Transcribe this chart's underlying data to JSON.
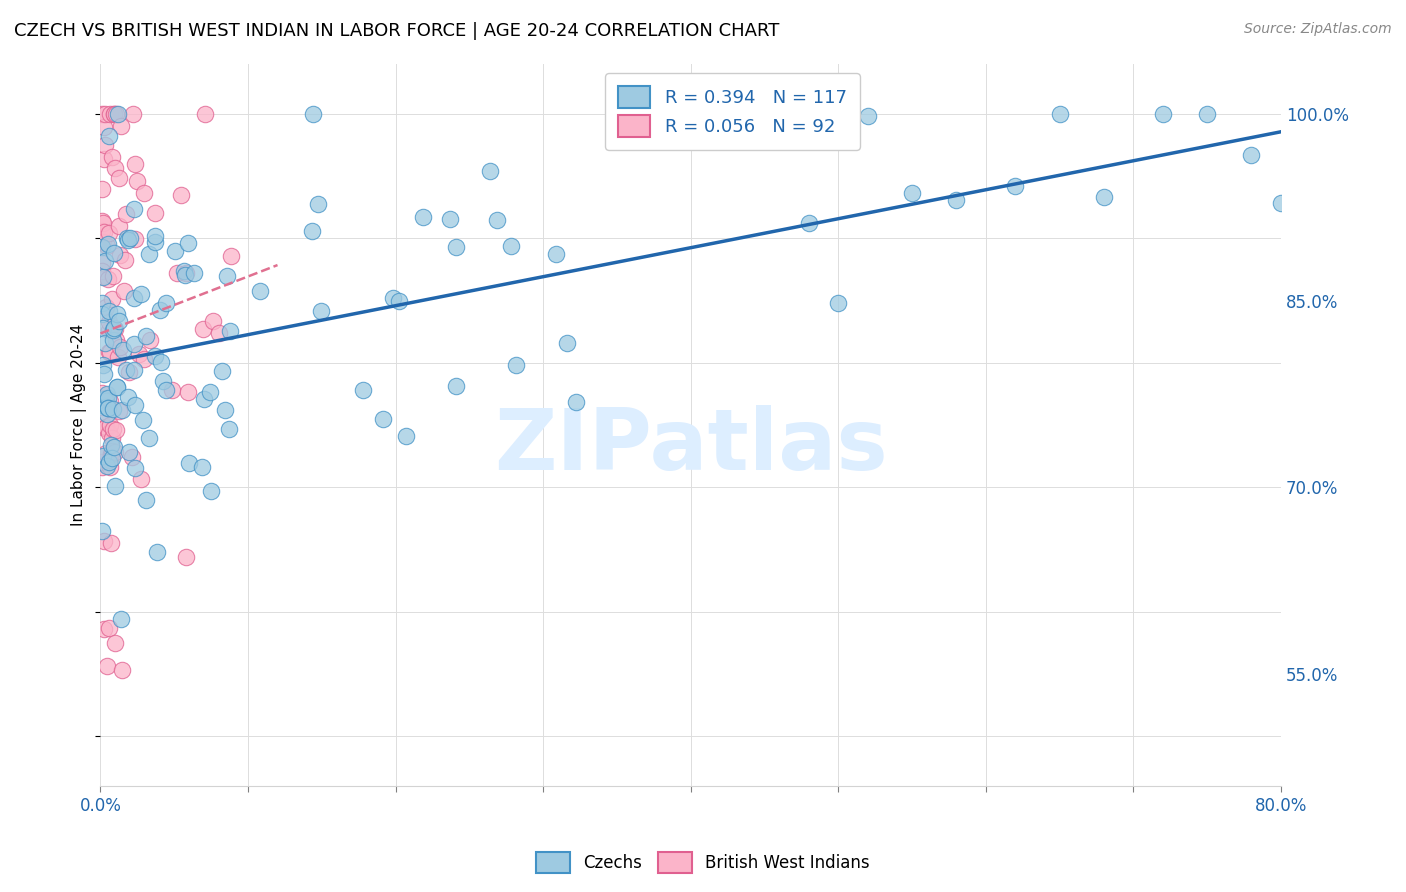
{
  "title": "CZECH VS BRITISH WEST INDIAN IN LABOR FORCE | AGE 20-24 CORRELATION CHART",
  "source": "Source: ZipAtlas.com",
  "ylabel": "In Labor Force | Age 20-24",
  "xlim": [
    0.0,
    0.8
  ],
  "ylim": [
    0.46,
    1.04
  ],
  "x_ticks": [
    0.0,
    0.1,
    0.2,
    0.3,
    0.4,
    0.5,
    0.6,
    0.7,
    0.8
  ],
  "x_tick_labels": [
    "0.0%",
    "",
    "",
    "",
    "",
    "",
    "",
    "",
    "80.0%"
  ],
  "y_ticks": [
    0.55,
    0.7,
    0.85,
    1.0
  ],
  "y_tick_labels": [
    "55.0%",
    "70.0%",
    "85.0%",
    "100.0%"
  ],
  "czech_R": 0.394,
  "czech_N": 117,
  "bwi_R": 0.056,
  "bwi_N": 92,
  "czech_color": "#9ecae1",
  "czech_edge_color": "#4292c6",
  "bwi_color": "#fbb4c9",
  "bwi_edge_color": "#e06090",
  "trend_czech_color": "#2166ac",
  "trend_bwi_color": "#e07090",
  "legend_text_color": "#2166ac",
  "watermark": "ZIPatlas",
  "watermark_color": "#ddeeff",
  "background_color": "#ffffff",
  "grid_color": "#dddddd"
}
